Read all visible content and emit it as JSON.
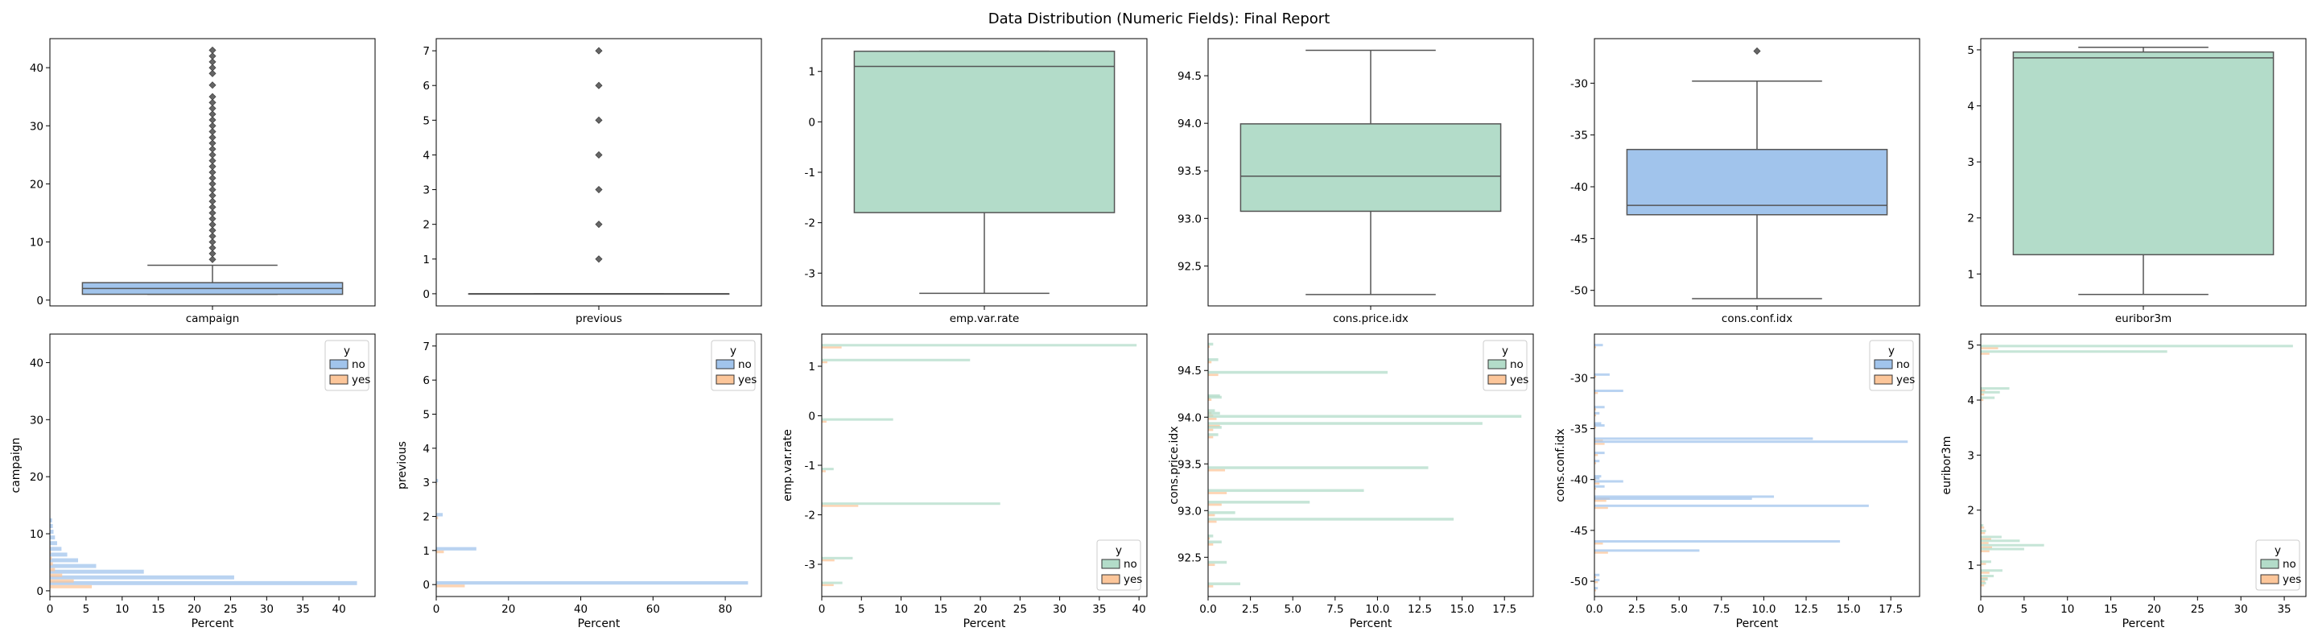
{
  "figure": {
    "title": "Data Distribution (Numeric Fields): Final Report"
  },
  "colors": {
    "blue": "#a1c4ec",
    "green": "#b3dcc9",
    "orange": "#fcc69a",
    "line": "#555555"
  },
  "legend": {
    "title": "y",
    "labels": [
      "no",
      "yes"
    ]
  },
  "chart_data": [
    {
      "type": "box",
      "field": "campaign",
      "xlabel": "campaign",
      "color": "blue",
      "ylim": [
        -1,
        45
      ],
      "yticks": [
        0,
        10,
        20,
        30,
        40
      ],
      "stats": {
        "whisker_low": 1,
        "q1": 1,
        "median": 2,
        "q3": 3,
        "whisker_high": 6
      },
      "outliers": [
        7,
        8,
        9,
        10,
        11,
        12,
        13,
        14,
        15,
        16,
        17,
        18,
        19,
        20,
        21,
        22,
        23,
        24,
        25,
        26,
        27,
        28,
        29,
        30,
        31,
        32,
        33,
        34,
        35,
        37,
        39,
        40,
        41,
        42,
        43
      ]
    },
    {
      "type": "box",
      "field": "previous",
      "xlabel": "previous",
      "color": "blue",
      "ylim": [
        -0.35,
        7.35
      ],
      "yticks": [
        0,
        1,
        2,
        3,
        4,
        5,
        6,
        7
      ],
      "stats": {
        "whisker_low": 0,
        "q1": 0,
        "median": 0,
        "q3": 0,
        "whisker_high": 0
      },
      "outliers": [
        1,
        2,
        3,
        4,
        5,
        6,
        7
      ]
    },
    {
      "type": "box",
      "field": "emp.var.rate",
      "xlabel": "emp.var.rate",
      "color": "green",
      "ylim": [
        -3.65,
        1.65
      ],
      "yticks": [
        -3,
        -2,
        -1,
        0,
        1
      ],
      "stats": {
        "whisker_low": -3.4,
        "q1": -1.8,
        "median": 1.1,
        "q3": 1.4,
        "whisker_high": 1.4
      },
      "outliers": []
    },
    {
      "type": "box",
      "field": "cons.price.idx",
      "xlabel": "cons.price.idx",
      "color": "green",
      "ylim": [
        92.08,
        94.89
      ],
      "yticks": [
        92.5,
        93.0,
        93.5,
        94.0,
        94.5
      ],
      "ytick_labels": [
        "92.5",
        "93.0",
        "93.5",
        "94.0",
        "94.5"
      ],
      "stats": {
        "whisker_low": 92.2,
        "q1": 93.075,
        "median": 93.444,
        "q3": 93.994,
        "whisker_high": 94.767
      },
      "outliers": []
    },
    {
      "type": "box",
      "field": "cons.conf.idx",
      "xlabel": "cons.conf.idx",
      "color": "blue",
      "ylim": [
        -51.5,
        -25.7
      ],
      "yticks": [
        -50,
        -45,
        -40,
        -35,
        -30
      ],
      "stats": {
        "whisker_low": -50.8,
        "q1": -42.7,
        "median": -41.8,
        "q3": -36.4,
        "whisker_high": -29.8
      },
      "outliers": [
        -26.9
      ]
    },
    {
      "type": "box",
      "field": "euribor3m",
      "xlabel": "euribor3m",
      "color": "green",
      "ylim": [
        0.43,
        5.2
      ],
      "yticks": [
        1,
        2,
        3,
        4,
        5
      ],
      "stats": {
        "whisker_low": 0.634,
        "q1": 1.344,
        "median": 4.857,
        "q3": 4.961,
        "whisker_high": 5.045
      },
      "outliers": []
    },
    {
      "type": "hbar-hist",
      "field": "campaign",
      "ylabel": "campaign",
      "xlabel": "Percent",
      "color": "blue",
      "xlim": [
        0,
        45
      ],
      "xticks": [
        0,
        5,
        10,
        15,
        20,
        25,
        30,
        35,
        40
      ],
      "ylim": [
        -1,
        45
      ],
      "yticks": [
        0,
        10,
        20,
        30,
        40
      ],
      "legend_position": "upper right",
      "bar_height": 0.7,
      "bars": [
        {
          "y": 1,
          "no": 42.5,
          "yes": 5.8
        },
        {
          "y": 2,
          "no": 25.5,
          "yes": 3.3
        },
        {
          "y": 3,
          "no": 13.0,
          "yes": 1.7
        },
        {
          "y": 4,
          "no": 6.4,
          "yes": 0.7
        },
        {
          "y": 5,
          "no": 3.9,
          "yes": 0.4
        },
        {
          "y": 6,
          "no": 2.4,
          "yes": 0.25
        },
        {
          "y": 7,
          "no": 1.6,
          "yes": 0.15
        },
        {
          "y": 8,
          "no": 1.0,
          "yes": 0.1
        },
        {
          "y": 9,
          "no": 0.7,
          "yes": 0.05
        },
        {
          "y": 10,
          "no": 0.5,
          "yes": 0.05
        },
        {
          "y": 11,
          "no": 0.4,
          "yes": 0.03
        },
        {
          "y": 12,
          "no": 0.3,
          "yes": 0.02
        }
      ]
    },
    {
      "type": "hbar-hist",
      "field": "previous",
      "ylabel": "previous",
      "xlabel": "Percent",
      "color": "blue",
      "xlim": [
        0,
        90
      ],
      "xticks": [
        0,
        20,
        40,
        60,
        80
      ],
      "ylim": [
        -0.35,
        7.35
      ],
      "yticks": [
        0,
        1,
        2,
        3,
        4,
        5,
        6,
        7
      ],
      "legend_position": "upper right",
      "bar_height": 0.1,
      "bars": [
        {
          "y": 0,
          "no": 86.3,
          "yes": 7.9
        },
        {
          "y": 1,
          "no": 11.1,
          "yes": 2.1
        },
        {
          "y": 2,
          "no": 1.8,
          "yes": 0.5
        },
        {
          "y": 3,
          "no": 0.5,
          "yes": 0.2
        },
        {
          "y": 4,
          "no": 0.15,
          "yes": 0.05
        },
        {
          "y": 5,
          "no": 0.05,
          "yes": 0.02
        },
        {
          "y": 6,
          "no": 0.02,
          "yes": 0.01
        },
        {
          "y": 7,
          "no": 0.01,
          "yes": 0.0
        }
      ]
    },
    {
      "type": "hbar-hist",
      "field": "emp.var.rate",
      "ylabel": "emp.var.rate",
      "xlabel": "Percent",
      "color": "green",
      "xlim": [
        0,
        41
      ],
      "xticks": [
        0,
        5,
        10,
        15,
        20,
        25,
        30,
        35,
        40
      ],
      "ylim": [
        -3.65,
        1.65
      ],
      "yticks": [
        -3,
        -2,
        -1,
        0,
        1
      ],
      "legend_position": "lower right",
      "bar_height": 0.05,
      "bars": [
        {
          "y": 1.4,
          "no": 39.7,
          "yes": 2.5
        },
        {
          "y": 1.1,
          "no": 18.7,
          "yes": 0.7
        },
        {
          "y": -0.1,
          "no": 9.0,
          "yes": 0.6
        },
        {
          "y": -1.1,
          "no": 1.5,
          "yes": 0.5
        },
        {
          "y": -1.8,
          "no": 22.5,
          "yes": 4.6
        },
        {
          "y": -2.9,
          "no": 3.9,
          "yes": 1.6
        },
        {
          "y": -3.4,
          "no": 2.6,
          "yes": 1.5
        }
      ]
    },
    {
      "type": "hbar-hist",
      "field": "cons.price.idx",
      "ylabel": "cons.price.idx",
      "xlabel": "Percent",
      "color": "green",
      "xlim": [
        0,
        19.2
      ],
      "xticks": [
        0,
        2.5,
        5,
        7.5,
        10,
        12.5,
        15,
        17.5
      ],
      "xtick_labels": [
        "0.0",
        "2.5",
        "5.0",
        "7.5",
        "10.0",
        "12.5",
        "15.0",
        "17.5"
      ],
      "ylim": [
        92.08,
        94.89
      ],
      "yticks": [
        92.5,
        93.0,
        93.5,
        94.0,
        94.5
      ],
      "ytick_labels": [
        "92.5",
        "93.0",
        "93.5",
        "94.0",
        "94.5"
      ],
      "legend_position": "upper right",
      "bar_height": 0.03,
      "bars": [
        {
          "y": 94.767,
          "no": 0.3,
          "yes": 0.1
        },
        {
          "y": 94.601,
          "no": 0.6,
          "yes": 0.2
        },
        {
          "y": 94.465,
          "no": 10.6,
          "yes": 0.6
        },
        {
          "y": 94.215,
          "no": 0.7,
          "yes": 0.1
        },
        {
          "y": 94.199,
          "no": 0.8,
          "yes": 0.2
        },
        {
          "y": 94.055,
          "no": 0.4,
          "yes": 0.2
        },
        {
          "y": 94.027,
          "no": 0.7,
          "yes": 0.3
        },
        {
          "y": 93.994,
          "no": 18.5,
          "yes": 0.5
        },
        {
          "y": 93.918,
          "no": 16.2,
          "yes": 0.7
        },
        {
          "y": 93.876,
          "no": 0.8,
          "yes": 0.3
        },
        {
          "y": 93.798,
          "no": 0.6,
          "yes": 0.3
        },
        {
          "y": 93.444,
          "no": 13.0,
          "yes": 1.0
        },
        {
          "y": 93.2,
          "no": 9.2,
          "yes": 1.1
        },
        {
          "y": 93.075,
          "no": 6.0,
          "yes": 0.8
        },
        {
          "y": 92.963,
          "no": 1.6,
          "yes": 0.4
        },
        {
          "y": 92.893,
          "no": 14.5,
          "yes": 0.5
        },
        {
          "y": 92.713,
          "no": 0.3,
          "yes": 0.1
        },
        {
          "y": 92.649,
          "no": 0.8,
          "yes": 0.3
        },
        {
          "y": 92.431,
          "no": 1.1,
          "yes": 0.4
        },
        {
          "y": 92.201,
          "no": 1.9,
          "yes": 0.3
        }
      ]
    },
    {
      "type": "hbar-hist",
      "field": "cons.conf.idx",
      "ylabel": "cons.conf.idx",
      "xlabel": "Percent",
      "color": "blue",
      "xlim": [
        0,
        19.2
      ],
      "xticks": [
        0,
        2.5,
        5,
        7.5,
        10,
        12.5,
        15,
        17.5
      ],
      "xtick_labels": [
        "0.0",
        "2.5",
        "5.0",
        "7.5",
        "10.0",
        "12.5",
        "15.0",
        "17.5"
      ],
      "ylim": [
        -51.5,
        -25.7
      ],
      "yticks": [
        -50,
        -45,
        -40,
        -35,
        -30
      ],
      "legend_position": "upper right",
      "bar_height": 0.22,
      "bars": [
        {
          "y": -26.9,
          "no": 0.5,
          "yes": 0.1
        },
        {
          "y": -29.8,
          "no": 0.9,
          "yes": 0.1
        },
        {
          "y": -31.4,
          "no": 1.7,
          "yes": 0.2
        },
        {
          "y": -33.0,
          "no": 0.6,
          "yes": 0.1
        },
        {
          "y": -33.6,
          "no": 0.3,
          "yes": 0.1
        },
        {
          "y": -34.6,
          "no": 0.4,
          "yes": 0.1
        },
        {
          "y": -34.8,
          "no": 0.6,
          "yes": 0.1
        },
        {
          "y": -36.1,
          "no": 12.9,
          "yes": 0.5
        },
        {
          "y": -36.4,
          "no": 18.5,
          "yes": 0.6
        },
        {
          "y": -37.5,
          "no": 0.6,
          "yes": 0.2
        },
        {
          "y": -38.3,
          "no": 0.3,
          "yes": 0.1
        },
        {
          "y": -39.8,
          "no": 0.4,
          "yes": 0.1
        },
        {
          "y": -40.0,
          "no": 0.3,
          "yes": 0.1
        },
        {
          "y": -40.3,
          "no": 1.7,
          "yes": 0.3
        },
        {
          "y": -40.8,
          "no": 0.6,
          "yes": 0.1
        },
        {
          "y": -41.8,
          "no": 10.6,
          "yes": 0.9
        },
        {
          "y": -42.0,
          "no": 9.3,
          "yes": 0.7
        },
        {
          "y": -42.7,
          "no": 16.2,
          "yes": 0.8
        },
        {
          "y": -46.2,
          "no": 14.5,
          "yes": 0.5
        },
        {
          "y": -47.1,
          "no": 6.2,
          "yes": 0.8
        },
        {
          "y": -49.5,
          "no": 0.3,
          "yes": 0.1
        },
        {
          "y": -50.0,
          "no": 0.3,
          "yes": 0.2
        },
        {
          "y": -50.8,
          "no": 0.2,
          "yes": 0.1
        }
      ]
    },
    {
      "type": "hbar-hist",
      "field": "euribor3m",
      "ylabel": "euribor3m",
      "xlabel": "Percent",
      "color": "green",
      "xlim": [
        0,
        37.5
      ],
      "xticks": [
        0,
        5,
        10,
        15,
        20,
        25,
        30,
        35
      ],
      "ylim": [
        0.43,
        5.2
      ],
      "yticks": [
        1,
        2,
        3,
        4,
        5
      ],
      "legend_position": "lower right",
      "bar_height": 0.045,
      "bars": [
        {
          "y": 4.96,
          "no": 36.0,
          "yes": 2.0
        },
        {
          "y": 4.86,
          "no": 21.5,
          "yes": 1.0
        },
        {
          "y": 4.19,
          "no": 3.3,
          "yes": 0.5
        },
        {
          "y": 4.12,
          "no": 2.2,
          "yes": 0.4
        },
        {
          "y": 4.02,
          "no": 1.6,
          "yes": 0.3
        },
        {
          "y": 1.7,
          "no": 0.3,
          "yes": 0.4
        },
        {
          "y": 1.6,
          "no": 0.6,
          "yes": 0.5
        },
        {
          "y": 1.49,
          "no": 2.4,
          "yes": 1.2
        },
        {
          "y": 1.42,
          "no": 4.5,
          "yes": 0.9
        },
        {
          "y": 1.34,
          "no": 7.3,
          "yes": 1.3
        },
        {
          "y": 1.27,
          "no": 5.0,
          "yes": 1.0
        },
        {
          "y": 1.04,
          "no": 1.2,
          "yes": 0.6
        },
        {
          "y": 0.88,
          "no": 2.5,
          "yes": 1.0
        },
        {
          "y": 0.78,
          "no": 1.5,
          "yes": 0.8
        },
        {
          "y": 0.72,
          "no": 0.8,
          "yes": 0.5
        },
        {
          "y": 0.65,
          "no": 0.6,
          "yes": 0.4
        }
      ]
    }
  ]
}
